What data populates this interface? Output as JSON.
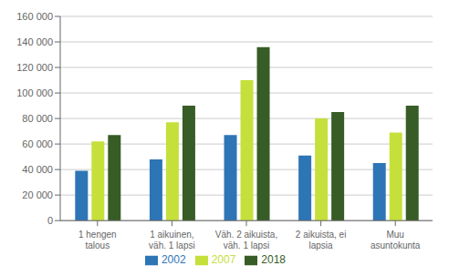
{
  "chart_data": {
    "type": "bar",
    "categories": [
      "1 hengen\ntalous",
      "1 aikuinen,\nväh. 1 lapsi",
      "Väh. 2 aikuista,\nväh. 1 lapsi",
      "2 aikuista, ei\nlapsia",
      "Muu\nasuntokunta"
    ],
    "series": [
      {
        "name": "2002",
        "color": "#2E75B6",
        "values": [
          39000,
          48000,
          67000,
          51000,
          45000
        ]
      },
      {
        "name": "2007",
        "color": "#C5E03B",
        "values": [
          62000,
          77000,
          110000,
          80000,
          69000
        ]
      },
      {
        "name": "2018",
        "color": "#375C26",
        "values": [
          67000,
          90000,
          136000,
          85000,
          90000
        ]
      }
    ],
    "ylim": [
      0,
      160000
    ],
    "yticks": [
      0,
      {
        "value": 20000,
        "label": "20 000"
      },
      {
        "value": 40000,
        "label": "40 000"
      },
      {
        "value": 60000,
        "label": "60 000"
      },
      {
        "value": 80000,
        "label": "80 000"
      },
      {
        "value": 100000,
        "label": "100 000"
      },
      {
        "value": 120000,
        "label": "120 000"
      },
      {
        "value": 140000,
        "label": "140 000"
      },
      {
        "value": 160000,
        "label": "160 000"
      }
    ],
    "grid": true,
    "legend": "bottom"
  }
}
